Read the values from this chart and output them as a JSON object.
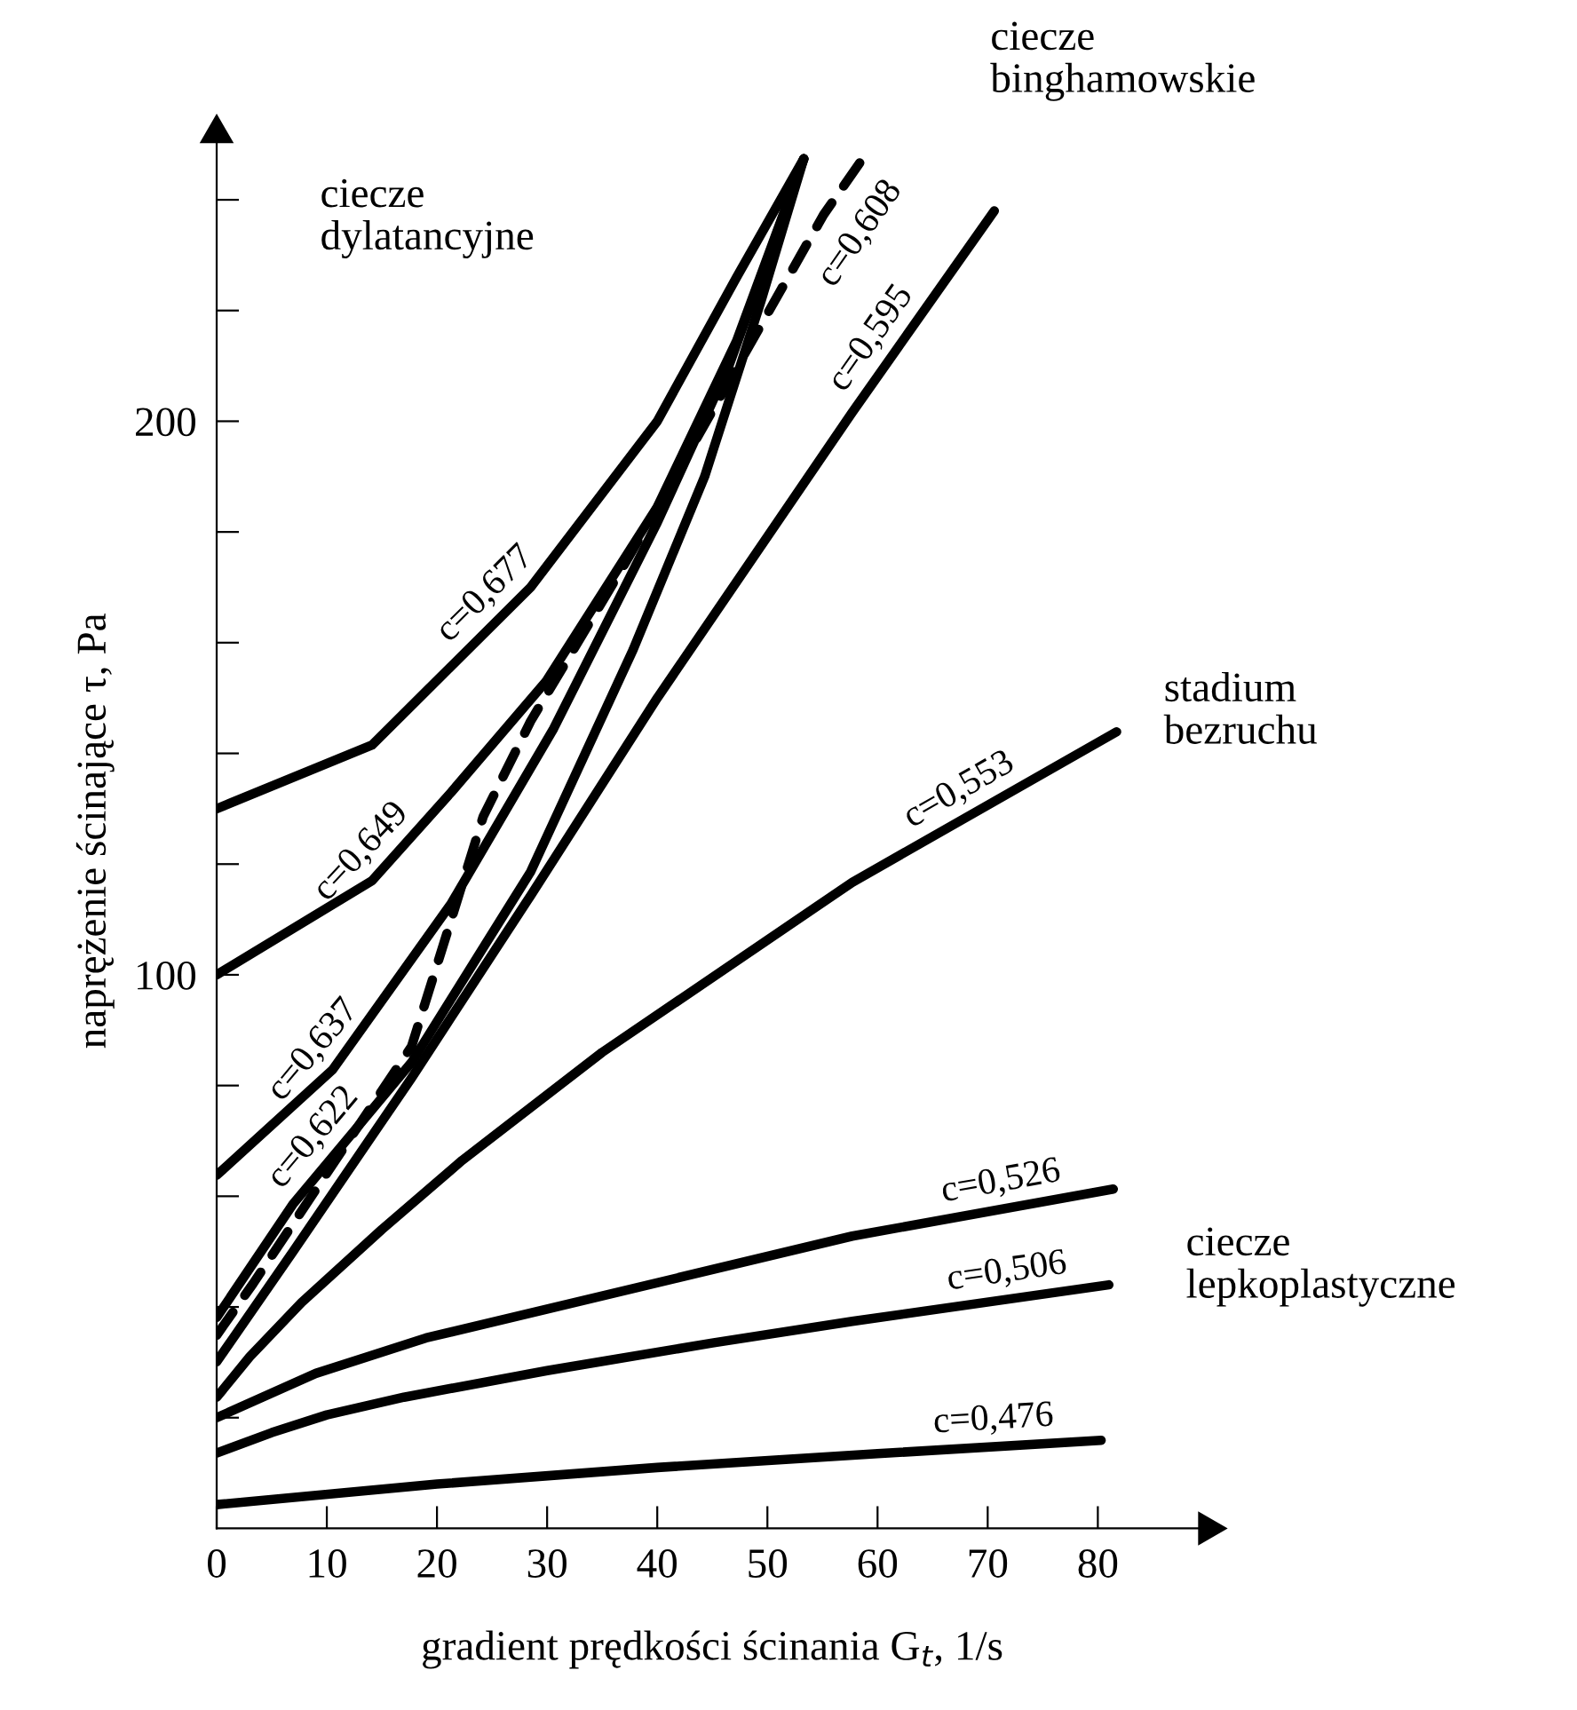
{
  "chart_data": {
    "type": "line",
    "xlabel": "gradient prędkości ścinania G$_{t}$, 1/s",
    "ylabel": "naprężenie ścinające τ, Pa",
    "xlim": [
      0,
      90
    ],
    "ylim": [
      0,
      252
    ],
    "xticks": [
      0,
      10,
      20,
      30,
      40,
      50,
      60,
      70,
      80
    ],
    "yticks": [
      {
        "value": 20,
        "label": null
      },
      {
        "value": 40,
        "label": null
      },
      {
        "value": 60,
        "label": null
      },
      {
        "value": 80,
        "label": null
      },
      100,
      {
        "value": 120,
        "label": null
      },
      {
        "value": 140,
        "label": null
      },
      {
        "value": 160,
        "label": null
      },
      {
        "value": 180,
        "label": null
      },
      200,
      {
        "value": 220,
        "label": null
      },
      {
        "value": 240,
        "label": null
      }
    ],
    "grid": false,
    "legend": false,
    "marker": "none",
    "line_style": "solid",
    "series": [
      {
        "name": "c=0,677",
        "color": "#000000",
        "x": [
          0,
          14.1,
          28.5,
          40,
          47.2,
          53.3
        ],
        "values": [
          130,
          141.5,
          170,
          200,
          226,
          247.4
        ]
      },
      {
        "name": "c=0,649",
        "color": "#000000",
        "x": [
          0,
          14.1,
          21.3,
          29.9,
          40,
          47.2,
          53.3
        ],
        "values": [
          100,
          117,
          133,
          153,
          184.5,
          214.5,
          247.4
        ]
      },
      {
        "name": "c=0,637",
        "color": "#000000",
        "x": [
          0,
          10.5,
          21.3,
          30.6,
          40,
          46.5,
          53.3
        ],
        "values": [
          63.8,
          82.8,
          112.9,
          144.5,
          181.7,
          210,
          247.4
        ]
      },
      {
        "name": "c=0,622",
        "color": "#000000",
        "x": [
          0,
          6.9,
          17.7,
          28.5,
          37.8,
          44.3,
          49.4,
          53.3
        ],
        "values": [
          38.1,
          58.5,
          84.2,
          118.6,
          158.7,
          190,
          221.6,
          247.4
        ]
      },
      {
        "name": "c=0,608",
        "color": "#000000",
        "line_style": "dashed",
        "x": [
          0,
          3.3,
          17.7,
          21.3,
          24.2,
          28.5,
          37.1,
          42.9,
          49.4,
          55.1,
          58.5
        ],
        "values": [
          34.9,
          44.2,
          87.1,
          110,
          128.6,
          145.8,
          174.4,
          194.5,
          217.3,
          237.3,
          247
        ]
      },
      {
        "name": "c=0,595",
        "color": "#000000",
        "x": [
          0,
          6.9,
          17.7,
          28.5,
          40,
          57.7,
          70.6
        ],
        "values": [
          30.1,
          49.9,
          81.4,
          114.3,
          150,
          201.6,
          238
        ]
      },
      {
        "name": "c=0,553",
        "color": "#000000",
        "x": [
          0,
          3,
          7.7,
          15,
          22.3,
          35,
          57.7,
          81.7
        ],
        "values": [
          23.7,
          31,
          40.8,
          54,
          66.5,
          86,
          116.7,
          143.9
        ]
      },
      {
        "name": "c=0,526",
        "color": "#000000",
        "x": [
          0,
          9,
          19,
          35,
          57.7,
          81.4
        ],
        "values": [
          20,
          28,
          34.4,
          42,
          52.8,
          61.3
        ]
      },
      {
        "name": "c=0,506",
        "color": "#000000",
        "x": [
          0,
          5,
          10,
          17,
          30,
          45,
          57.7,
          81
        ],
        "values": [
          13.6,
          17.3,
          20.5,
          23.7,
          28.5,
          33.5,
          37.4,
          44
        ]
      },
      {
        "name": "c=0,476",
        "color": "#000000",
        "x": [
          0,
          20,
          40,
          60,
          80.3
        ],
        "values": [
          4.3,
          8,
          11,
          13.5,
          15.9
        ]
      }
    ],
    "annotations": [
      "ciecze\ndylatancyjne",
      "ciecze\nbinghamowskie",
      "stadium\nbezruchu",
      "ciecze\nlepkoplastyczne"
    ]
  }
}
